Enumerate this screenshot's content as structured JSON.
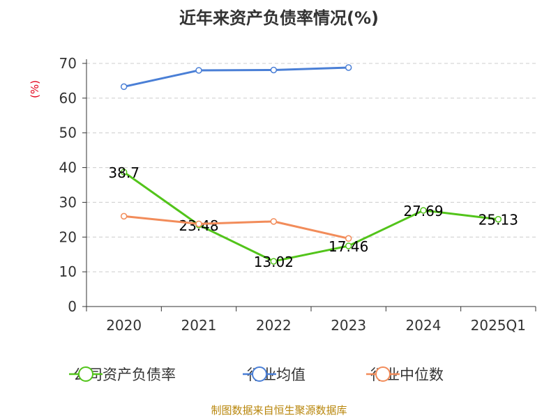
{
  "chart_data": {
    "type": "line",
    "title": "近年来资产负债率情况(%)",
    "ylabel": "(%)",
    "xlabel": "",
    "categories": [
      "2020",
      "2021",
      "2022",
      "2023",
      "2024",
      "2025Q1"
    ],
    "y_ticks": [
      "0",
      "10",
      "20",
      "30",
      "40",
      "50",
      "60",
      "70"
    ],
    "ylim": [
      0,
      70
    ],
    "grid": true,
    "legend_position": "bottom",
    "series": [
      {
        "name": "公司资产负债率",
        "color": "#52c41a",
        "values": [
          38.7,
          23.48,
          13.02,
          17.46,
          27.69,
          25.13
        ],
        "labels": [
          "38.7",
          "23.48",
          "13.02",
          "17.46",
          "27.69",
          "25.13"
        ]
      },
      {
        "name": "行业均值",
        "color": "#4a7fd6",
        "values": [
          63.3,
          68.0,
          68.1,
          68.8,
          null,
          null
        ]
      },
      {
        "name": "行业中位数",
        "color": "#f28c5a",
        "values": [
          26.0,
          23.8,
          24.5,
          19.6,
          null,
          null
        ]
      }
    ]
  },
  "footer": "制图数据来自恒生聚源数据库"
}
